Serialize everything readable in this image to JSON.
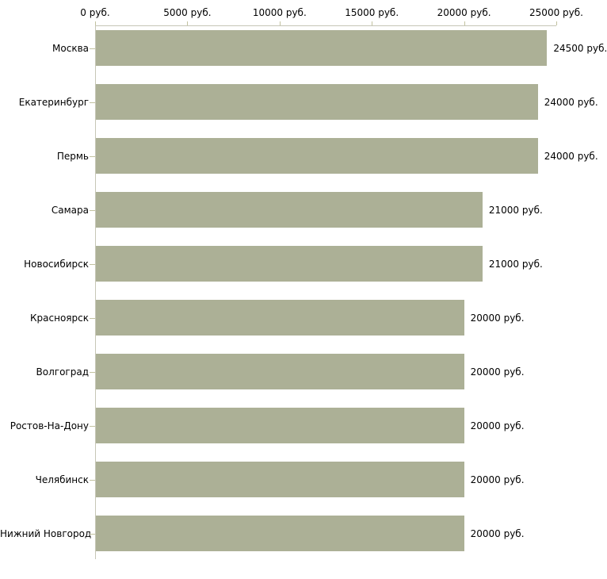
{
  "chart_data": {
    "type": "bar",
    "orientation": "horizontal",
    "title": "",
    "categories": [
      "Москва",
      "Екатеринбург",
      "Пермь",
      "Самара",
      "Новосибирск",
      "Красноярск",
      "Волгоград",
      "Ростов-На-Дону",
      "Челябинск",
      "Нижний Новгород"
    ],
    "values": [
      24500,
      24000,
      24000,
      21000,
      21000,
      20000,
      20000,
      20000,
      20000,
      20000
    ],
    "value_labels": [
      "24500 руб.",
      "24000 руб.",
      "24000 руб.",
      "21000 руб.",
      "21000 руб.",
      "20000 руб.",
      "20000 руб.",
      "20000 руб.",
      "20000 руб.",
      "20000 руб."
    ],
    "x_axis": {
      "position": "top",
      "tick_values": [
        0,
        5000,
        10000,
        15000,
        20000,
        25000
      ],
      "tick_labels": [
        "0 руб.",
        "5000 руб.",
        "10000 руб.",
        "15000 руб.",
        "20000 руб.",
        "25000 руб."
      ],
      "range": [
        0,
        25000
      ],
      "unit": "руб."
    },
    "ylabel": "",
    "xlabel": "",
    "grid": false,
    "legend": false,
    "colors": {
      "bar": "#acb096",
      "axis_line": "#c6c6b6",
      "tick": "#c2c2a0",
      "text": "#000000",
      "background": "#ffffff"
    }
  }
}
